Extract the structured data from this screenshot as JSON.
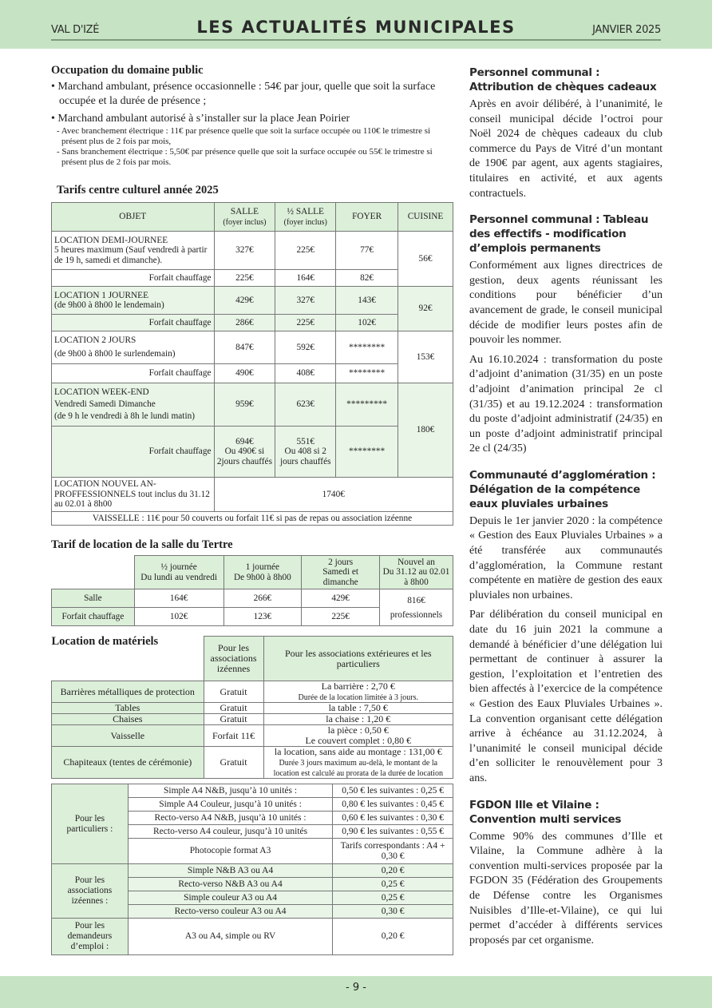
{
  "header": {
    "left": "VAL D'IZÉ",
    "title": "LES ACTUALITÉS MUNICIPALES",
    "right": "JANVIER 2025"
  },
  "footer": {
    "page": "- 9 -"
  },
  "colors": {
    "band": "#c6e4c3",
    "cell_green": "#dcefd9",
    "cell_light": "#e9f5e7"
  },
  "occupation": {
    "title": "Occupation du domaine public",
    "bullets": [
      "• Marchand ambulant, présence occasionnelle : 54€ par jour, quelle que soit la surface occupée et la durée de présence ;",
      "• Marchand ambulant autorisé à s’installer sur la place Jean Poirier"
    ],
    "subs": [
      "- Avec branchement électrique : 11€ par présence quelle que soit la surface occupée ou 110€ le trimestre si présent plus de 2 fois par mois,",
      "- Sans branchement électrique : 5,50€ par présence quelle que soit la surface occupée ou 55€ le trimestre si présent plus de 2 fois par mois."
    ]
  },
  "culturel": {
    "title": "Tarifs centre culturel année 2025",
    "headers": {
      "objet": "OBJET",
      "salle": "SALLE",
      "salle_sub": "(foyer inclus)",
      "demi": "½ SALLE",
      "demi_sub": "(foyer inclus)",
      "foyer": "FOYER",
      "cuisine": "CUISINE"
    },
    "forfait": "Forfait chauffage",
    "rows": [
      {
        "l1": "LOCATION DEMI-JOURNEE",
        "l2": "5 heures maximum (Sauf vendredi à partir de 19 h, samedi et dimanche).",
        "salle": "327€",
        "demi": "225€",
        "foyer": "77€",
        "f_salle": "225€",
        "f_demi": "164€",
        "f_foyer": "82€",
        "cuisine": "56€"
      },
      {
        "l1": "LOCATION 1 JOURNEE",
        "l2": "(de 9h00 à 8h00 le lendemain)",
        "salle": "429€",
        "demi": "327€",
        "foyer": "143€",
        "f_salle": "286€",
        "f_demi": "225€",
        "f_foyer": "102€",
        "cuisine": "92€"
      },
      {
        "l1": "LOCATION 2 JOURS",
        "l2": "(de 9h00 à 8h00 le surlendemain)",
        "salle": "847€",
        "demi": "592€",
        "foyer": "********",
        "f_salle": "490€",
        "f_demi": "408€",
        "f_foyer": "********",
        "cuisine": "153€"
      },
      {
        "l1": "LOCATION WEEK-END",
        "l2": "Vendredi Samedi Dimanche",
        "l3": "(de 9 h le vendredi à 8h le lundi matin)",
        "salle": "959€",
        "demi": "623€",
        "foyer": "*********",
        "f_salle": "694€",
        "f_salle_2": "Ou 490€ si 2jours chauffés",
        "f_demi": "551€",
        "f_demi_2": "Ou 408 si 2 jours chauffés",
        "f_foyer": "********",
        "cuisine": "180€"
      }
    ],
    "nouvel_an": {
      "label": "LOCATION NOUVEL AN-PROFFESSIONNELS tout inclus du 31.12 au 02.01 à 8h00",
      "price": "1740€"
    },
    "vaisselle": "VAISSELLE : 11€ pour 50 couverts ou forfait 11€ si pas de repas ou association izéenne"
  },
  "tertre": {
    "title": "Tarif de location de la salle du Tertre",
    "headers": [
      [
        "½ journée",
        "Du lundi au vendredi"
      ],
      [
        "1 journée",
        "De 9h00 à 8h00"
      ],
      [
        "2 jours",
        "Samedi et dimanche"
      ],
      [
        "Nouvel an",
        "Du 31.12 au 02.01 à 8h00"
      ]
    ],
    "rows": [
      {
        "label": "Salle",
        "values": [
          "164€",
          "266€",
          "429€"
        ]
      },
      {
        "label": "Forfait chauffage",
        "values": [
          "102€",
          "123€",
          "225€"
        ]
      }
    ],
    "nouvel_an": [
      "816€",
      "professionnels"
    ]
  },
  "materiels": {
    "title": "Location de matériels",
    "headers": [
      "Pour les associations izéennes",
      "Pour les associations extérieures et les particuliers"
    ],
    "rows": [
      {
        "item": "Barrières métalliques de protection",
        "asso": "Gratuit",
        "ext": "La barrière : 2,70 €",
        "note": "Durée de la location limitée à 3 jours."
      },
      {
        "item": "Tables",
        "asso": "Gratuit",
        "ext": "la table : 7,50 €"
      },
      {
        "item": "Chaises",
        "asso": "Gratuit",
        "ext": "la chaise : 1,20 €"
      },
      {
        "item": "Vaisselle",
        "asso": "Forfait 11€",
        "ext": "la pièce : 0,50 €",
        "ext2": "Le couvert complet : 0,80 €"
      },
      {
        "item": "Chapiteaux (tentes de cérémonie)",
        "asso": "Gratuit",
        "ext": "la location, sans aide au montage : 131,00 €",
        "note": "Durée 3 jours maximum au-delà, le montant de la location est calculé au prorata de la durée de location"
      }
    ]
  },
  "copies": {
    "groups": [
      {
        "label": "Pour les particuliers :",
        "rows": [
          [
            "Simple A4 N&B, jusqu’à 10 unités :",
            "0,50 € les suivantes : 0,25 €"
          ],
          [
            "Simple A4 Couleur, jusqu’à 10 unités :",
            "0,80 € les suivantes : 0,45 €"
          ],
          [
            "Recto-verso A4 N&B, jusqu’à 10 unités :",
            "0,60 € les suivantes : 0,30 €"
          ],
          [
            "Recto-verso A4 couleur, jusqu’à 10 unités",
            "0,90 € les suivantes : 0,55 €"
          ],
          [
            "Photocopie format A3",
            "Tarifs correspondants : A4 + 0,30 €"
          ]
        ]
      },
      {
        "label": "Pour les associations izéennes :",
        "rows": [
          [
            "Simple N&B A3 ou A4",
            "0,20 €"
          ],
          [
            "Recto-verso N&B A3 ou A4",
            "0,25 €"
          ],
          [
            "Simple couleur A3 ou A4",
            "0,25 €"
          ],
          [
            "Recto-verso couleur A3 ou A4",
            "0,30 €"
          ]
        ]
      },
      {
        "label": "Pour les demandeurs d’emploi :",
        "rows": [
          [
            "A3 ou A4, simple ou RV",
            "0,20 €"
          ]
        ]
      }
    ]
  },
  "articles": [
    {
      "title": "Personnel communal : Attribution de chèques cadeaux",
      "paras": [
        "Après en avoir délibéré, à l’unanimité, le conseil municipal décide l’octroi pour Noël 2024 de chèques cadeaux du club commerce du Pays de Vitré d’un montant de 190€ par agent, aux agents stagiaires, titulaires en activité, et aux agents contractuels."
      ]
    },
    {
      "title": "Personnel communal : Tableau des effectifs - modification d’emplois permanents",
      "paras": [
        "Conformément aux lignes directrices de gestion, deux agents réunissant les conditions pour bénéficier d’un avancement de grade, le conseil municipal décide de modifier leurs postes afin de pouvoir les nommer.",
        "Au 16.10.2024 : transformation du poste d’adjoint d’animation (31/35) en un poste d’adjoint d’animation principal 2e cl (31/35) et au 19.12.2024 : transformation du poste d’adjoint administratif (24/35) en un poste d’adjoint administratif principal 2e cl (24/35)"
      ]
    },
    {
      "title": "Communauté d’agglomération : Délégation de la compétence eaux pluviales urbaines",
      "paras": [
        "Depuis le 1er janvier 2020 : la compétence « Gestion des Eaux Pluviales Urbaines » a été transférée aux communautés d’agglomération, la Commune restant compétente en matière de gestion des eaux pluviales non urbaines.",
        "Par délibération du conseil municipal en date du 16 juin 2021 la commune a demandé à bénéficier d’une délégation lui permettant de continuer à assurer la gestion, l’exploitation et l’entretien des bien affectés à l’exercice de la compétence « Gestion des Eaux Pluviales Urbaines ». La convention organisant cette délégation arrive à échéance au 31.12.2024, à l’unanimité le conseil municipal décide d’en solliciter le renouvèlement pour 3 ans."
      ]
    },
    {
      "title": "FGDON Ille et Vilaine : Convention multi services",
      "paras": [
        "Comme 90% des communes d’Ille et Vilaine, la Commune adhère à la convention multi-services proposée par la FGDON 35 (Fédération des Groupements de Défense contre les Organismes Nuisibles d’Ille-et-Vilaine), ce qui lui permet d’accéder à différents services proposés par cet organisme."
      ]
    }
  ]
}
